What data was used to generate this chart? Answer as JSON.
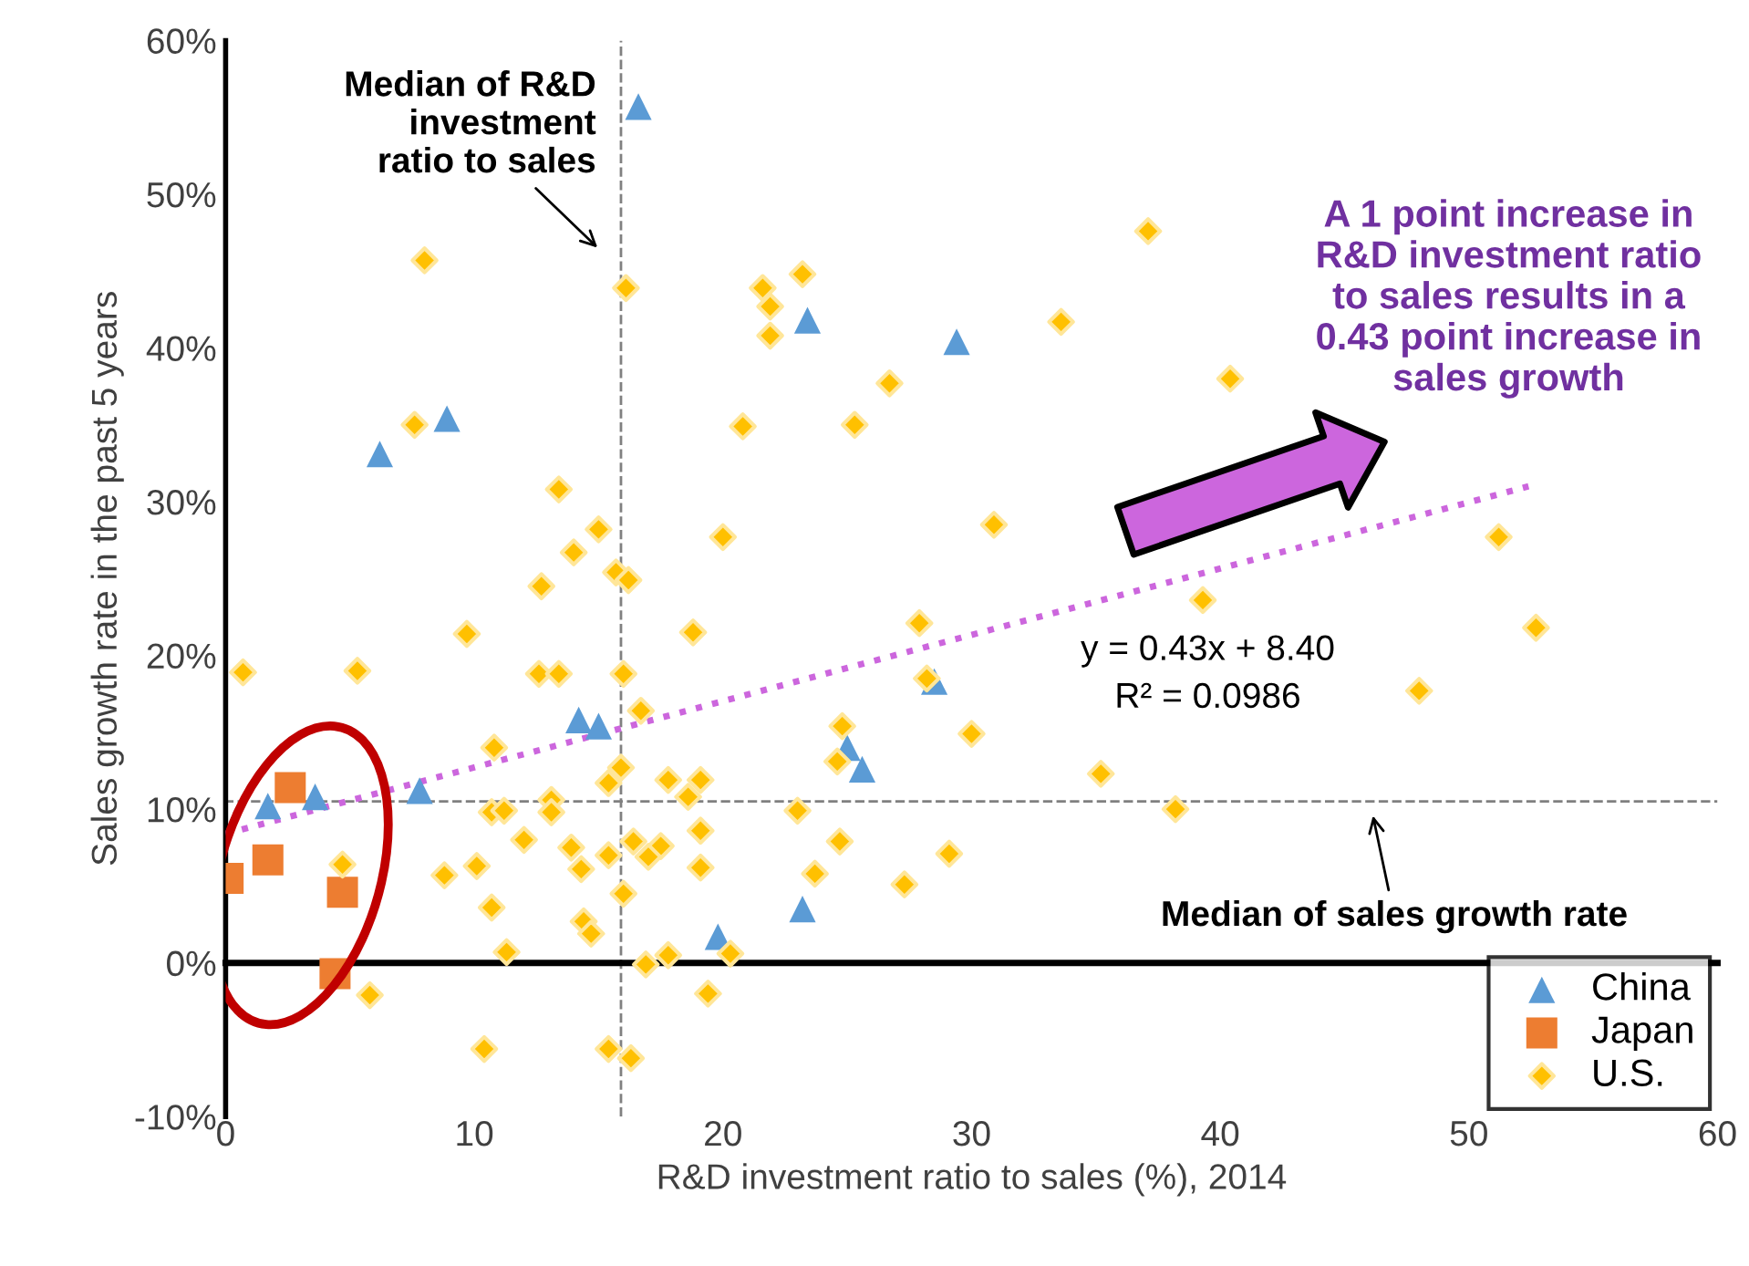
{
  "chart_data": {
    "type": "scatter",
    "xlabel": "R&D investment ratio to sales (%), 2014",
    "ylabel": "Sales growth rate in the past 5 years",
    "xlim": [
      0,
      60
    ],
    "xticks": [
      0,
      10,
      20,
      30,
      40,
      50,
      60
    ],
    "ylim": [
      -10,
      60
    ],
    "yticks": [
      {
        "value": -10,
        "label": "-10%"
      },
      {
        "value": 0,
        "label": "0%"
      },
      {
        "value": 10,
        "label": "10%"
      },
      {
        "value": 20,
        "label": "20%"
      },
      {
        "value": 30,
        "label": "30%"
      },
      {
        "value": 40,
        "label": "40%"
      },
      {
        "value": 50,
        "label": "50%"
      },
      {
        "value": 60,
        "label": "60%"
      }
    ],
    "legend": "bottom right",
    "series": [
      {
        "name": "China",
        "color": "#5b9bd5",
        "marker": "triangle",
        "x": [
          16.6,
          8.9,
          6.2,
          23.4,
          29.4,
          14.2,
          15.0,
          7.8,
          3.6,
          1.7,
          28.5,
          25.0,
          25.6,
          23.2,
          19.8
        ],
        "values": [
          55.7,
          35.4,
          33.1,
          41.8,
          40.4,
          15.8,
          15.4,
          11.2,
          10.8,
          10.2,
          18.3,
          14.0,
          12.6,
          3.5,
          1.7
        ]
      },
      {
        "name": "Japan",
        "color": "#ed7d31",
        "marker": "square",
        "x": [
          2.6,
          1.7,
          0.1,
          4.7,
          4.4
        ],
        "values": [
          11.4,
          6.7,
          5.5,
          4.6,
          -0.7
        ]
      },
      {
        "name": "U.S.",
        "color": "#ffc000",
        "marker": "diamond",
        "x": [
          8.0,
          16.1,
          7.6,
          13.4,
          15.0,
          14.0,
          20.0,
          15.7,
          12.7,
          37.1,
          21.6,
          23.2,
          21.9,
          21.9,
          33.6,
          26.7,
          20.8,
          25.3,
          40.4,
          30.9,
          51.2,
          52.7,
          48.0,
          39.3,
          38.2,
          35.2,
          16.2,
          9.7,
          18.8,
          0.7,
          5.3,
          12.6,
          13.4,
          16.0,
          16.7,
          10.8,
          15.9,
          15.4,
          17.8,
          19.1,
          18.6,
          13.1,
          13.1,
          10.7,
          11.2,
          19.1,
          12.0,
          13.9,
          16.4,
          17.5,
          15.4,
          17.0,
          14.3,
          19.1,
          4.7,
          8.8,
          10.1,
          16.0,
          10.7,
          14.4,
          14.7,
          11.3,
          16.9,
          17.8,
          19.4,
          5.8,
          10.4,
          15.4,
          16.3,
          27.9,
          28.2,
          24.8,
          24.6,
          30.0,
          23.0,
          24.7,
          29.1,
          23.7,
          27.3,
          20.3
        ],
        "values": [
          45.7,
          43.9,
          35.0,
          30.8,
          28.2,
          26.7,
          27.7,
          25.4,
          24.5,
          47.6,
          43.9,
          44.8,
          42.7,
          40.8,
          41.7,
          37.7,
          34.9,
          35.0,
          38.0,
          28.5,
          27.7,
          21.8,
          17.7,
          23.6,
          10.0,
          12.3,
          24.9,
          21.4,
          21.5,
          18.9,
          19.0,
          18.8,
          18.8,
          18.8,
          16.4,
          14.0,
          12.7,
          11.7,
          11.9,
          11.9,
          10.8,
          10.6,
          9.8,
          9.8,
          9.9,
          8.6,
          8.0,
          7.5,
          7.9,
          7.6,
          7.0,
          6.9,
          6.1,
          6.2,
          6.4,
          5.7,
          6.3,
          4.5,
          3.6,
          2.7,
          1.9,
          0.7,
          -0.1,
          0.5,
          -2.0,
          -2.1,
          -5.6,
          -5.6,
          -6.2,
          22.1,
          18.5,
          15.4,
          13.1,
          14.9,
          9.9,
          7.9,
          7.1,
          5.8,
          5.1,
          0.6
        ]
      },
      {
        "type": "line",
        "color": "#cc66dd",
        "line_style": "dotted",
        "x": [
          0,
          52.4
        ],
        "values": [
          8.4,
          31.0
        ]
      }
    ],
    "ref_lines": [
      {
        "axis": "x",
        "value": 15.9,
        "label": "Median of R&D\ninvestment\nratio to sales",
        "color": "#808080",
        "line_style": "dashed"
      },
      {
        "axis": "y",
        "value": 10.5,
        "label": "Median of sales growth rate",
        "color": "#808080",
        "line_style": "dashed"
      }
    ],
    "annotations": [
      "A 1 point increase in\nR&D investment ratio\nto sales results in a\n0.43 point increase in\nsales growth",
      "y = 0.43x + 8.40",
      "R² = 0.0986"
    ]
  }
}
